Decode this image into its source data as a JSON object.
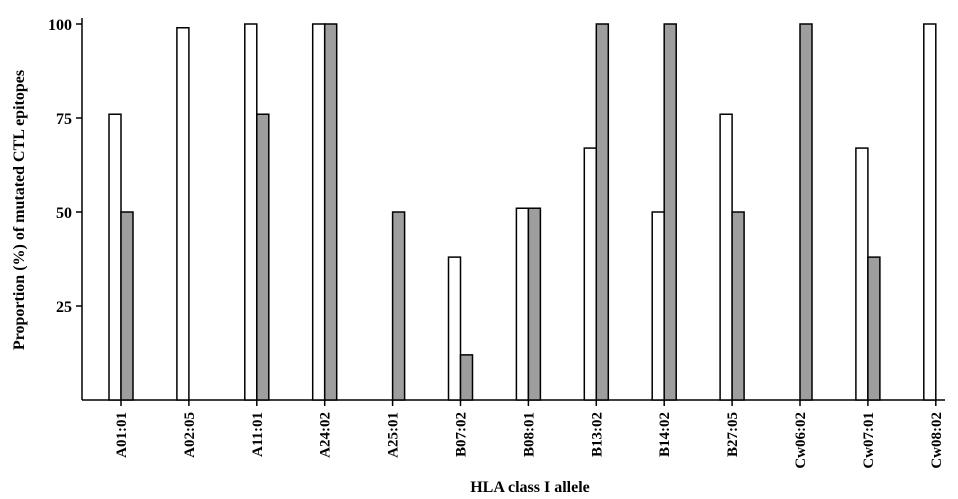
{
  "chart_data": {
    "type": "bar",
    "xlabel": "HLA class I allele",
    "ylabel": "Proportion (%) of mutated CTL epitopes",
    "ylim": [
      0,
      100
    ],
    "yticks": [
      25,
      50,
      75,
      100
    ],
    "grid": false,
    "legend": "none",
    "categories": [
      "A01:01",
      "A02:05",
      "A11:01",
      "A24:02",
      "A25:01",
      "B07:02",
      "B08:01",
      "B13:02",
      "B14:02",
      "B27:05",
      "Cw06:02",
      "Cw07:01",
      "Cw08:02"
    ],
    "series": [
      {
        "color": "#ffffff",
        "values": [
          76,
          99,
          100,
          100,
          0,
          38,
          51,
          67,
          50,
          76,
          0,
          67,
          100
        ]
      },
      {
        "color": "#9e9e9e",
        "values": [
          50,
          0,
          76,
          100,
          50,
          12,
          51,
          100,
          100,
          50,
          100,
          38,
          0
        ]
      }
    ]
  }
}
